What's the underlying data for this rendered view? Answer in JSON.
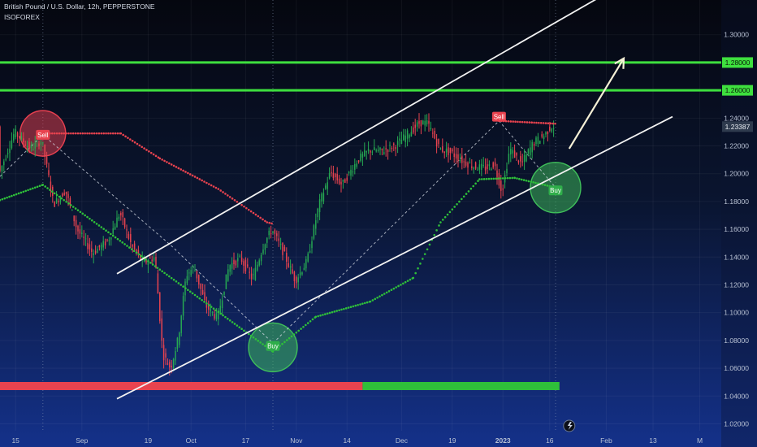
{
  "header": {
    "title": "British Pound / U.S. Dollar, 12h, PEPPERSTONE",
    "indicator": "ISOFOREX"
  },
  "colors": {
    "up": "#26a852",
    "down": "#e8434f",
    "level": "#3ee03e",
    "channel": "#f2f2f2",
    "stop_red": "#e8434f",
    "stop_green": "#2fbf3a",
    "arrow": "#f5f0d6",
    "circle_red": "#e84050",
    "circle_green": "#3fbf5a",
    "price_tag": "#2e3a4d"
  },
  "chart_data": {
    "type": "candlestick",
    "symbol": "GBPUSD",
    "timeframe": "12h",
    "ylim": [
      1.015,
      1.325
    ],
    "y_ticks": [
      "1.02000",
      "1.04000",
      "1.06000",
      "1.08000",
      "1.10000",
      "1.12000",
      "1.14000",
      "1.16000",
      "1.18000",
      "1.20000",
      "1.22000",
      "1.24000",
      "1.26000",
      "1.28000",
      "1.30000"
    ],
    "x_ticks": [
      {
        "label": "15",
        "t": 8
      },
      {
        "label": "Sep",
        "t": 42
      },
      {
        "label": "19",
        "t": 76
      },
      {
        "label": "Oct",
        "t": 98
      },
      {
        "label": "17",
        "t": 126
      },
      {
        "label": "Nov",
        "t": 152
      },
      {
        "label": "14",
        "t": 178
      },
      {
        "label": "Dec",
        "t": 206
      },
      {
        "label": "19",
        "t": 232
      },
      {
        "label": "2023",
        "t": 258
      },
      {
        "label": "16",
        "t": 282
      },
      {
        "label": "Feb",
        "t": 311
      },
      {
        "label": "13",
        "t": 335
      },
      {
        "label": "M",
        "t": 359
      }
    ],
    "x_range": [
      0,
      370
    ],
    "last_price": {
      "value": 1.23387,
      "label": "1.23387"
    },
    "horizontal_levels": [
      {
        "value": 1.28,
        "label": "1.28000"
      },
      {
        "value": 1.26,
        "label": "1.26000"
      }
    ],
    "channel": {
      "upper": [
        [
          60,
          1.128
        ],
        [
          330,
          1.345
        ]
      ],
      "lower": [
        [
          60,
          1.038
        ],
        [
          345,
          1.241
        ]
      ]
    },
    "projection_arrow": [
      [
        292,
        1.218
      ],
      [
        320,
        1.283
      ]
    ],
    "signals": [
      {
        "label": "Sell",
        "type": "sell",
        "t": 22,
        "value": 1.228
      },
      {
        "label": "Buy",
        "type": "buy",
        "t": 140,
        "value": 1.076
      },
      {
        "label": "Sell",
        "type": "sell",
        "t": 256,
        "value": 1.241
      },
      {
        "label": "Buy",
        "type": "buy",
        "t": 285,
        "value": 1.188
      }
    ],
    "signal_circles": [
      {
        "t": 22,
        "value": 1.229,
        "r": 28,
        "kind": "sell"
      },
      {
        "t": 140,
        "value": 1.075,
        "r": 30,
        "kind": "buy"
      },
      {
        "t": 285,
        "value": 1.19,
        "r": 31,
        "kind": "buy"
      }
    ],
    "zigzag": [
      [
        0,
        1.198
      ],
      [
        22,
        1.228
      ],
      [
        88,
        1.148
      ],
      [
        140,
        1.078
      ],
      [
        256,
        1.238
      ],
      [
        285,
        1.19
      ]
    ],
    "dotted_verticals": [
      22,
      140,
      285
    ],
    "trailing_stop_red": [
      [
        22,
        1.229
      ],
      [
        62,
        1.229
      ],
      [
        82,
        1.211
      ],
      [
        112,
        1.189
      ],
      [
        137,
        1.165
      ],
      [
        140,
        1.164
      ]
    ],
    "trailing_stop_red_late": [
      [
        256,
        1.238
      ],
      [
        285,
        1.236
      ]
    ],
    "trailing_stop_green": [
      [
        0,
        1.181
      ],
      [
        22,
        1.192
      ],
      [
        140,
        1.072
      ],
      [
        162,
        1.097
      ],
      [
        190,
        1.108
      ],
      [
        212,
        1.125
      ],
      [
        226,
        1.165
      ],
      [
        246,
        1.196
      ],
      [
        264,
        1.197
      ],
      [
        285,
        1.19
      ]
    ],
    "bottom_bar": [
      {
        "from": 0,
        "to": 186,
        "color": "red"
      },
      {
        "from": 186,
        "to": 287,
        "color": "green"
      }
    ],
    "candle_anchors": [
      [
        0,
        1.2
      ],
      [
        8,
        1.23
      ],
      [
        16,
        1.218
      ],
      [
        22,
        1.224
      ],
      [
        28,
        1.178
      ],
      [
        34,
        1.188
      ],
      [
        40,
        1.16
      ],
      [
        48,
        1.143
      ],
      [
        56,
        1.152
      ],
      [
        62,
        1.172
      ],
      [
        68,
        1.148
      ],
      [
        74,
        1.136
      ],
      [
        80,
        1.14
      ],
      [
        84,
        1.07
      ],
      [
        88,
        1.06
      ],
      [
        92,
        1.082
      ],
      [
        96,
        1.127
      ],
      [
        100,
        1.133
      ],
      [
        106,
        1.105
      ],
      [
        112,
        1.096
      ],
      [
        118,
        1.134
      ],
      [
        124,
        1.139
      ],
      [
        130,
        1.124
      ],
      [
        136,
        1.15
      ],
      [
        140,
        1.16
      ],
      [
        146,
        1.143
      ],
      [
        152,
        1.123
      ],
      [
        158,
        1.137
      ],
      [
        164,
        1.177
      ],
      [
        170,
        1.201
      ],
      [
        176,
        1.192
      ],
      [
        184,
        1.21
      ],
      [
        190,
        1.217
      ],
      [
        196,
        1.216
      ],
      [
        204,
        1.221
      ],
      [
        210,
        1.229
      ],
      [
        216,
        1.237
      ],
      [
        220,
        1.236
      ],
      [
        226,
        1.218
      ],
      [
        232,
        1.215
      ],
      [
        238,
        1.209
      ],
      [
        244,
        1.205
      ],
      [
        250,
        1.204
      ],
      [
        254,
        1.207
      ],
      [
        258,
        1.187
      ],
      [
        262,
        1.218
      ],
      [
        268,
        1.207
      ],
      [
        274,
        1.222
      ],
      [
        280,
        1.228
      ],
      [
        283,
        1.234
      ]
    ],
    "candles": []
  }
}
